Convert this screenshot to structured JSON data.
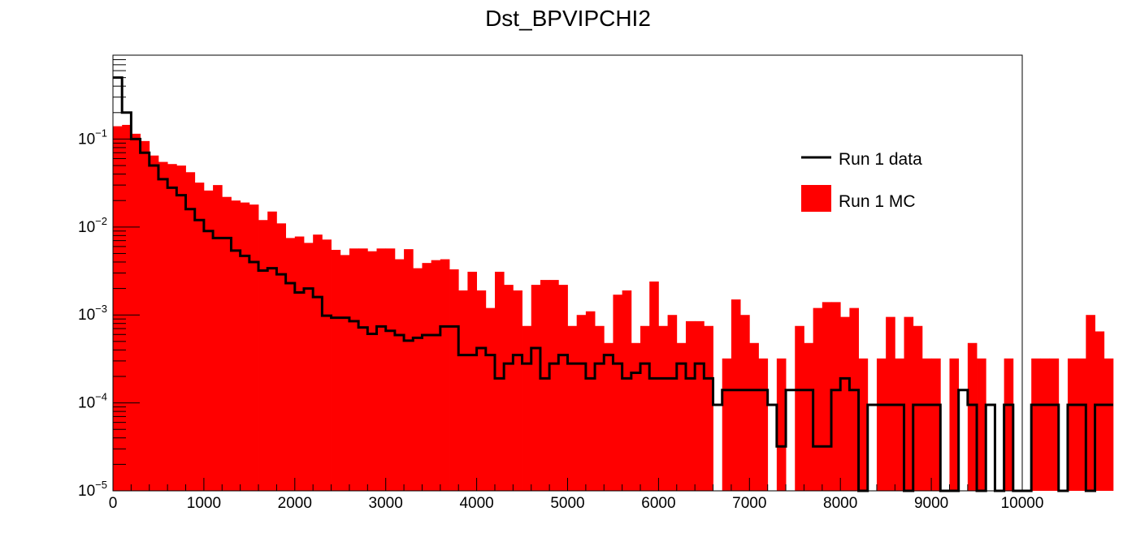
{
  "chart_data": {
    "type": "histogram",
    "title": "Dst_BPVIPCHI2",
    "xlabel": "",
    "ylabel": "",
    "xlim": [
      0,
      10000
    ],
    "ylim": [
      1e-05,
      0.9
    ],
    "y_scale": "log",
    "bin_width": 100,
    "x_ticks": [
      "0",
      "1000",
      "2000",
      "3000",
      "4000",
      "5000",
      "6000",
      "7000",
      "8000",
      "9000",
      "10000"
    ],
    "y_ticks": [
      {
        "base": "10",
        "exp": "−5",
        "value": 1e-05
      },
      {
        "base": "10",
        "exp": "−4",
        "value": 0.0001
      },
      {
        "base": "10",
        "exp": "−3",
        "value": 0.001
      },
      {
        "base": "10",
        "exp": "−2",
        "value": 0.01
      },
      {
        "base": "10",
        "exp": "−1",
        "value": 0.1
      }
    ],
    "legend": {
      "position": "top-right",
      "entries": [
        "Run 1 data",
        "Run 1 MC"
      ]
    },
    "series": [
      {
        "name": "Run 1 MC",
        "style": "filled",
        "color": "#ff0000",
        "values": [
          0.14,
          0.145,
          0.115,
          0.095,
          0.065,
          0.055,
          0.052,
          0.05,
          0.042,
          0.032,
          0.026,
          0.03,
          0.022,
          0.02,
          0.019,
          0.018,
          0.012,
          0.015,
          0.011,
          0.0075,
          0.0078,
          0.0066,
          0.0082,
          0.0072,
          0.0055,
          0.0048,
          0.0057,
          0.0057,
          0.0053,
          0.0057,
          0.0057,
          0.0043,
          0.0056,
          0.0034,
          0.0039,
          0.0042,
          0.0043,
          0.0033,
          0.0019,
          0.0031,
          0.0019,
          0.0012,
          0.0031,
          0.0022,
          0.0019,
          0.00075,
          0.0022,
          0.0025,
          0.0025,
          0.0022,
          0.00075,
          0.001,
          0.0011,
          0.00075,
          0.00048,
          0.0017,
          0.0019,
          0.00048,
          0.00075,
          0.0024,
          0.00075,
          0.001,
          0.00048,
          0.00085,
          0.00085,
          0.00075,
          0.0,
          0.00032,
          0.0015,
          0.001,
          0.00048,
          0.00032,
          0.0,
          0.00032,
          0.0,
          0.00075,
          0.00048,
          0.0012,
          0.0014,
          0.0014,
          0.00095,
          0.0012,
          0.00032,
          0.0,
          0.00032,
          0.00095,
          0.00032,
          0.00095,
          0.00075,
          0.00032,
          0.00032,
          0.0,
          0.00032,
          0.0,
          0.00048,
          0.00032,
          0.0,
          0.0,
          0.00032,
          0.0,
          0.0,
          0.00032,
          0.00032,
          0.00032,
          0.0,
          0.00032,
          0.00032,
          0.001,
          0.00065,
          0.00032
        ]
      },
      {
        "name": "Run 1 data",
        "style": "step",
        "color": "#000000",
        "values": [
          0.5,
          0.2,
          0.1,
          0.07,
          0.05,
          0.035,
          0.028,
          0.023,
          0.016,
          0.012,
          0.009,
          0.0075,
          0.0075,
          0.0054,
          0.0047,
          0.004,
          0.0032,
          0.0034,
          0.0029,
          0.0023,
          0.0018,
          0.002,
          0.0016,
          0.00098,
          0.00093,
          0.00093,
          0.00085,
          0.00072,
          0.00061,
          0.00074,
          0.00066,
          0.00059,
          0.00051,
          0.00055,
          0.00059,
          0.00059,
          0.00074,
          0.00074,
          0.00035,
          0.00035,
          0.00042,
          0.00035,
          0.00019,
          0.00028,
          0.00035,
          0.00028,
          0.00042,
          0.00019,
          0.00028,
          0.00035,
          0.00028,
          0.00028,
          0.00019,
          0.00028,
          0.00035,
          0.00028,
          0.00019,
          0.00022,
          0.00028,
          0.00019,
          0.00019,
          0.00019,
          0.00028,
          0.00019,
          0.00028,
          0.00019,
          9.5e-05,
          0.00014,
          0.00014,
          0.00014,
          0.00014,
          0.00014,
          9.5e-05,
          3.2e-05,
          0.00014,
          0.00014,
          0.00014,
          3.2e-05,
          3.2e-05,
          0.00014,
          0.00019,
          0.00014,
          0.0,
          9.5e-05,
          9.5e-05,
          9.5e-05,
          9.5e-05,
          0.0,
          9.5e-05,
          9.5e-05,
          9.5e-05,
          0.0,
          0.0,
          0.00014,
          9.5e-05,
          0.0,
          9.5e-05,
          0.0,
          9.5e-05,
          0.0,
          0.0,
          9.5e-05,
          9.5e-05,
          9.5e-05,
          0.0,
          9.5e-05,
          9.5e-05,
          0.0,
          9.5e-05,
          9.5e-05
        ]
      }
    ]
  }
}
